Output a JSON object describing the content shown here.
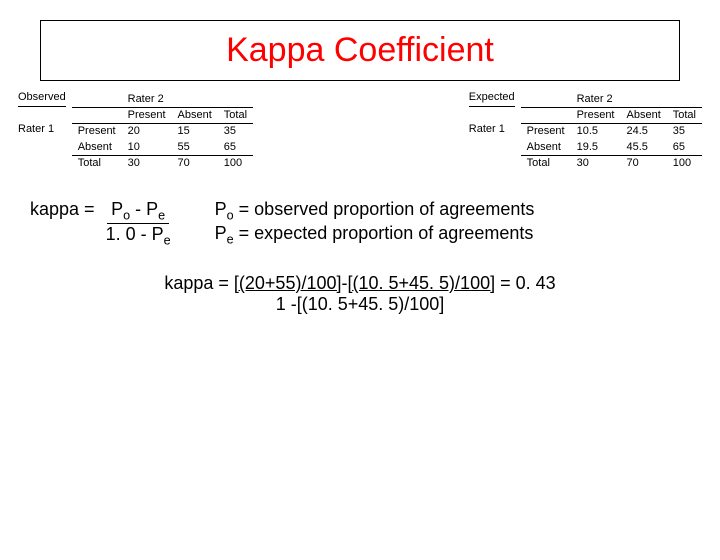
{
  "title": "Kappa Coefficient",
  "tables": {
    "observed": {
      "corner": "Observed",
      "rater2": "Rater 2",
      "rater1": "Rater 1",
      "cols": [
        "Present",
        "Absent",
        "Total"
      ],
      "rows": [
        {
          "label": "Present",
          "c1": "20",
          "c2": "15",
          "c3": "35"
        },
        {
          "label": "Absent",
          "c1": "10",
          "c2": "55",
          "c3": "65"
        },
        {
          "label": "Total",
          "c1": "30",
          "c2": "70",
          "c3": "100"
        }
      ]
    },
    "expected": {
      "corner": "Expected",
      "rater2": "Rater 2",
      "rater1": "Rater 1",
      "cols": [
        "Present",
        "Absent",
        "Total"
      ],
      "rows": [
        {
          "label": "Present",
          "c1": "10.5",
          "c2": "24.5",
          "c3": "35"
        },
        {
          "label": "Absent",
          "c1": "19.5",
          "c2": "45.5",
          "c3": "65"
        },
        {
          "label": "Total",
          "c1": "30",
          "c2": "70",
          "c3": "100"
        }
      ]
    }
  },
  "formula": {
    "lhs": "kappa = ",
    "num_a": "P",
    "num_a_sub": "o",
    "num_mid": " - ",
    "num_b": "P",
    "num_b_sub": "e",
    "den_a": "1. 0 - ",
    "den_b": "P",
    "den_b_sub": "e"
  },
  "defs": {
    "l1a": "P",
    "l1s": "o",
    "l1b": " = observed proportion of agreements",
    "l2a": "P",
    "l2s": "e",
    "l2b": " = expected proportion of agreements"
  },
  "calc": {
    "pre": "kappa = ",
    "u1": "[(20+55)/100]",
    "mid": "-",
    "u2": "[(10. 5+45. 5)/100]",
    "post": " = 0. 43",
    "den": "1 -[(10. 5+45. 5)/100]"
  }
}
